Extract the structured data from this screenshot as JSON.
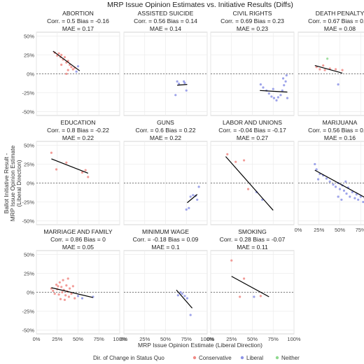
{
  "chart_data": {
    "type": "scatter",
    "title": "MRP Issue Opinion Estimates vs. Initiative Results (Diffs)",
    "xlabel": "MRP Issue Opinion Estimate (Liberal Direction)",
    "ylabel": "Ballot Initiative Result -\nMRP Issue Opinion Estimate\n(Liberal Direction)",
    "xlim": [
      0,
      1
    ],
    "ylim": [
      -0.55,
      0.55
    ],
    "x_ticks": [
      0,
      0.25,
      0.5,
      0.75,
      1
    ],
    "x_tick_labels": [
      "0%",
      "25%",
      "50%",
      "75%",
      "100%"
    ],
    "y_ticks": [
      -0.5,
      -0.25,
      0,
      0.25,
      0.5
    ],
    "y_tick_labels": [
      "-50%",
      "-25%",
      "0%",
      "25%",
      "50%"
    ],
    "grid": true,
    "reference_line_y": 0,
    "legend": {
      "title": "Dir. of Change in Status Quo",
      "placement": "bottom",
      "entries": [
        {
          "label": "Conservative",
          "color": "#f08b86"
        },
        {
          "label": "Liberal",
          "color": "#8d94e6"
        },
        {
          "label": "Neither",
          "color": "#8fd98f"
        }
      ]
    },
    "colors": {
      "conservative": "#f08b86",
      "liberal": "#8d94e6",
      "neither": "#8fd98f",
      "panel_border": "#cccccc",
      "grid": "#ebebeb",
      "fit_line": "#000000"
    },
    "panels": [
      {
        "title": "ABORTION",
        "stats": "Corr. = 0.5 Bias = -0.16",
        "mae": "MAE = 0.17",
        "fit": [
          [
            0.2,
            0.3
          ],
          [
            0.52,
            0.04
          ]
        ],
        "points": [
          {
            "x": 0.22,
            "y": 0.28,
            "dir": "conservative"
          },
          {
            "x": 0.25,
            "y": 0.24,
            "dir": "conservative"
          },
          {
            "x": 0.27,
            "y": 0.27,
            "dir": "conservative"
          },
          {
            "x": 0.29,
            "y": 0.22,
            "dir": "conservative"
          },
          {
            "x": 0.3,
            "y": 0.25,
            "dir": "conservative"
          },
          {
            "x": 0.32,
            "y": 0.19,
            "dir": "conservative"
          },
          {
            "x": 0.34,
            "y": 0.22,
            "dir": "conservative"
          },
          {
            "x": 0.36,
            "y": 0.15,
            "dir": "conservative"
          },
          {
            "x": 0.38,
            "y": 0.17,
            "dir": "conservative"
          },
          {
            "x": 0.4,
            "y": 0.12,
            "dir": "conservative"
          },
          {
            "x": 0.42,
            "y": 0.09,
            "dir": "conservative"
          },
          {
            "x": 0.44,
            "y": 0.06,
            "dir": "conservative"
          },
          {
            "x": 0.46,
            "y": 0.08,
            "dir": "conservative"
          },
          {
            "x": 0.3,
            "y": 0.12,
            "dir": "conservative"
          },
          {
            "x": 0.38,
            "y": 0.05,
            "dir": "conservative"
          },
          {
            "x": 0.36,
            "y": 0.0,
            "dir": "conservative"
          },
          {
            "x": 0.5,
            "y": 0.1,
            "dir": "liberal"
          },
          {
            "x": 0.48,
            "y": 0.03,
            "dir": "liberal"
          }
        ]
      },
      {
        "title": "ASSISTED SUICIDE",
        "stats": "Corr. = 0.56 Bias = 0.14",
        "mae": "MAE = 0.14",
        "fit": [
          [
            0.64,
            -0.15
          ],
          [
            0.76,
            -0.14
          ]
        ],
        "points": [
          {
            "x": 0.64,
            "y": -0.1,
            "dir": "liberal"
          },
          {
            "x": 0.66,
            "y": -0.13,
            "dir": "liberal"
          },
          {
            "x": 0.72,
            "y": -0.1,
            "dir": "liberal"
          },
          {
            "x": 0.73,
            "y": -0.12,
            "dir": "liberal"
          },
          {
            "x": 0.75,
            "y": -0.22,
            "dir": "liberal"
          },
          {
            "x": 0.62,
            "y": -0.28,
            "dir": "liberal"
          }
        ]
      },
      {
        "title": "CIVIL RIGHTS",
        "stats": "Corr. = 0.69 Bias = 0.23",
        "mae": "MAE = 0.23",
        "fit": [
          [
            0.59,
            -0.22
          ],
          [
            0.92,
            -0.24
          ]
        ],
        "points": [
          {
            "x": 0.6,
            "y": -0.14,
            "dir": "liberal"
          },
          {
            "x": 0.63,
            "y": -0.18,
            "dir": "liberal"
          },
          {
            "x": 0.67,
            "y": -0.22,
            "dir": "liberal"
          },
          {
            "x": 0.7,
            "y": -0.26,
            "dir": "liberal"
          },
          {
            "x": 0.73,
            "y": -0.3,
            "dir": "liberal"
          },
          {
            "x": 0.76,
            "y": -0.32,
            "dir": "liberal"
          },
          {
            "x": 0.79,
            "y": -0.35,
            "dir": "liberal"
          },
          {
            "x": 0.81,
            "y": -0.31,
            "dir": "liberal"
          },
          {
            "x": 0.84,
            "y": -0.28,
            "dir": "liberal"
          },
          {
            "x": 0.86,
            "y": -0.22,
            "dir": "liberal"
          },
          {
            "x": 0.88,
            "y": -0.15,
            "dir": "liberal"
          },
          {
            "x": 0.9,
            "y": -0.1,
            "dir": "liberal"
          },
          {
            "x": 0.87,
            "y": -0.06,
            "dir": "liberal"
          },
          {
            "x": 0.91,
            "y": -0.02,
            "dir": "liberal"
          },
          {
            "x": 0.92,
            "y": -0.32,
            "dir": "liberal"
          },
          {
            "x": 0.75,
            "y": -0.2,
            "dir": "liberal"
          }
        ]
      },
      {
        "title": "DEATH PENALTY",
        "stats": "Corr. = 0.67 Bias = 0.05",
        "mae": "MAE = 0.08",
        "fit": [
          [
            0.2,
            0.11
          ],
          [
            0.53,
            0.01
          ]
        ],
        "points": [
          {
            "x": 0.22,
            "y": 0.09,
            "dir": "conservative"
          },
          {
            "x": 0.26,
            "y": 0.06,
            "dir": "conservative"
          },
          {
            "x": 0.3,
            "y": 0.11,
            "dir": "conservative"
          },
          {
            "x": 0.32,
            "y": 0.05,
            "dir": "conservative"
          },
          {
            "x": 0.35,
            "y": 0.2,
            "dir": "neither"
          },
          {
            "x": 0.38,
            "y": 0.07,
            "dir": "conservative"
          },
          {
            "x": 0.45,
            "y": 0.06,
            "dir": "conservative"
          },
          {
            "x": 0.48,
            "y": -0.14,
            "dir": "liberal"
          },
          {
            "x": 0.53,
            "y": 0.05,
            "dir": "conservative"
          }
        ]
      },
      {
        "title": "EDUCATION",
        "stats": "Corr. = 0.8 Bias = -0.22",
        "mae": "MAE = 0.22",
        "fit": [
          [
            0.18,
            0.32
          ],
          [
            0.62,
            0.13
          ]
        ],
        "points": [
          {
            "x": 0.18,
            "y": 0.4,
            "dir": "conservative"
          },
          {
            "x": 0.24,
            "y": 0.18,
            "dir": "conservative"
          },
          {
            "x": 0.36,
            "y": 0.27,
            "dir": "conservative"
          },
          {
            "x": 0.55,
            "y": 0.14,
            "dir": "conservative"
          },
          {
            "x": 0.59,
            "y": 0.17,
            "dir": "conservative"
          },
          {
            "x": 0.62,
            "y": 0.08,
            "dir": "conservative"
          }
        ]
      },
      {
        "title": "GUNS",
        "stats": "Corr. = 0.6 Bias = 0.22",
        "mae": "MAE = 0.22",
        "fit": [
          [
            0.76,
            -0.26
          ],
          [
            0.88,
            -0.15
          ]
        ],
        "points": [
          {
            "x": 0.75,
            "y": -0.35,
            "dir": "liberal"
          },
          {
            "x": 0.78,
            "y": -0.33,
            "dir": "liberal"
          },
          {
            "x": 0.8,
            "y": -0.18,
            "dir": "liberal"
          },
          {
            "x": 0.83,
            "y": -0.16,
            "dir": "liberal"
          },
          {
            "x": 0.86,
            "y": -0.17,
            "dir": "liberal"
          },
          {
            "x": 0.88,
            "y": -0.22,
            "dir": "liberal"
          },
          {
            "x": 0.9,
            "y": -0.05,
            "dir": "liberal"
          }
        ]
      },
      {
        "title": "LABOR AND UNIONS",
        "stats": "Corr. = -0.04 Bias = -0.17",
        "mae": "MAE = 0.27",
        "fit": [
          [
            0.18,
            0.35
          ],
          [
            0.75,
            -0.36
          ]
        ],
        "points": [
          {
            "x": 0.2,
            "y": 0.38,
            "dir": "conservative"
          },
          {
            "x": 0.3,
            "y": 0.28,
            "dir": "conservative"
          },
          {
            "x": 0.4,
            "y": 0.3,
            "dir": "conservative"
          },
          {
            "x": 0.45,
            "y": -0.08,
            "dir": "conservative"
          },
          {
            "x": 0.55,
            "y": -0.12,
            "dir": "liberal"
          },
          {
            "x": 0.62,
            "y": -0.22,
            "dir": "liberal"
          }
        ]
      },
      {
        "title": "MARIJUANA",
        "stats": "Corr. = 0.56 Bias = 0.16",
        "mae": "MAE = 0.16",
        "fit": [
          [
            0.2,
            0.17
          ],
          [
            0.95,
            -0.28
          ]
        ],
        "points": [
          {
            "x": 0.2,
            "y": 0.25,
            "dir": "liberal"
          },
          {
            "x": 0.22,
            "y": 0.18,
            "dir": "liberal"
          },
          {
            "x": 0.26,
            "y": 0.12,
            "dir": "liberal"
          },
          {
            "x": 0.3,
            "y": 0.1,
            "dir": "liberal"
          },
          {
            "x": 0.34,
            "y": 0.06,
            "dir": "liberal"
          },
          {
            "x": 0.38,
            "y": 0.02,
            "dir": "liberal"
          },
          {
            "x": 0.42,
            "y": -0.02,
            "dir": "liberal"
          },
          {
            "x": 0.45,
            "y": -0.05,
            "dir": "liberal"
          },
          {
            "x": 0.48,
            "y": 0.0,
            "dir": "liberal"
          },
          {
            "x": 0.5,
            "y": -0.08,
            "dir": "liberal"
          },
          {
            "x": 0.53,
            "y": -0.03,
            "dir": "liberal"
          },
          {
            "x": 0.55,
            "y": -0.1,
            "dir": "liberal"
          },
          {
            "x": 0.58,
            "y": -0.14,
            "dir": "liberal"
          },
          {
            "x": 0.6,
            "y": -0.06,
            "dir": "liberal"
          },
          {
            "x": 0.62,
            "y": -0.18,
            "dir": "liberal"
          },
          {
            "x": 0.65,
            "y": -0.12,
            "dir": "liberal"
          },
          {
            "x": 0.68,
            "y": -0.2,
            "dir": "liberal"
          },
          {
            "x": 0.7,
            "y": -0.15,
            "dir": "liberal"
          },
          {
            "x": 0.72,
            "y": -0.22,
            "dir": "liberal"
          },
          {
            "x": 0.75,
            "y": -0.18,
            "dir": "liberal"
          },
          {
            "x": 0.78,
            "y": -0.25,
            "dir": "liberal"
          },
          {
            "x": 0.8,
            "y": -0.2,
            "dir": "liberal"
          },
          {
            "x": 0.52,
            "y": -0.22,
            "dir": "liberal"
          },
          {
            "x": 0.48,
            "y": -0.18,
            "dir": "liberal"
          },
          {
            "x": 0.57,
            "y": 0.02,
            "dir": "liberal"
          },
          {
            "x": 0.82,
            "y": -0.28,
            "dir": "liberal"
          },
          {
            "x": 0.24,
            "y": 0.05,
            "dir": "liberal"
          }
        ]
      },
      {
        "title": "MARRIAGE AND FAMILY",
        "stats": "Corr. = 0.86 Bias = 0",
        "mae": "MAE = 0.05",
        "fit": [
          [
            0.18,
            0.06
          ],
          [
            0.68,
            -0.07
          ]
        ],
        "points": [
          {
            "x": 0.18,
            "y": 0.05,
            "dir": "conservative"
          },
          {
            "x": 0.2,
            "y": 0.02,
            "dir": "conservative"
          },
          {
            "x": 0.22,
            "y": -0.02,
            "dir": "conservative"
          },
          {
            "x": 0.24,
            "y": 0.1,
            "dir": "conservative"
          },
          {
            "x": 0.25,
            "y": 0.04,
            "dir": "conservative"
          },
          {
            "x": 0.27,
            "y": -0.03,
            "dir": "conservative"
          },
          {
            "x": 0.28,
            "y": 0.13,
            "dir": "conservative"
          },
          {
            "x": 0.3,
            "y": 0.07,
            "dir": "conservative"
          },
          {
            "x": 0.31,
            "y": 0.0,
            "dir": "conservative"
          },
          {
            "x": 0.32,
            "y": 0.16,
            "dir": "conservative"
          },
          {
            "x": 0.33,
            "y": 0.03,
            "dir": "conservative"
          },
          {
            "x": 0.35,
            "y": -0.04,
            "dir": "conservative"
          },
          {
            "x": 0.36,
            "y": 0.09,
            "dir": "conservative"
          },
          {
            "x": 0.37,
            "y": 0.01,
            "dir": "conservative"
          },
          {
            "x": 0.38,
            "y": 0.18,
            "dir": "conservative"
          },
          {
            "x": 0.39,
            "y": -0.06,
            "dir": "conservative"
          },
          {
            "x": 0.4,
            "y": 0.05,
            "dir": "conservative"
          },
          {
            "x": 0.42,
            "y": -0.02,
            "dir": "conservative"
          },
          {
            "x": 0.44,
            "y": 0.08,
            "dir": "conservative"
          },
          {
            "x": 0.46,
            "y": -0.08,
            "dir": "conservative"
          },
          {
            "x": 0.29,
            "y": -0.09,
            "dir": "conservative"
          },
          {
            "x": 0.26,
            "y": 0.08,
            "dir": "conservative"
          },
          {
            "x": 0.34,
            "y": -0.1,
            "dir": "conservative"
          },
          {
            "x": 0.5,
            "y": -0.05,
            "dir": "liberal"
          },
          {
            "x": 0.55,
            "y": -0.08,
            "dir": "liberal"
          },
          {
            "x": 0.68,
            "y": -0.06,
            "dir": "liberal"
          }
        ]
      },
      {
        "title": "MINIMUM WAGE",
        "stats": "Corr. = -0.18 Bias = 0.09",
        "mae": "MAE = 0.1",
        "fit": [
          [
            0.63,
            0.03
          ],
          [
            0.82,
            -0.21
          ]
        ],
        "points": [
          {
            "x": 0.65,
            "y": -0.04,
            "dir": "liberal"
          },
          {
            "x": 0.68,
            "y": 0.0,
            "dir": "liberal"
          },
          {
            "x": 0.7,
            "y": -0.02,
            "dir": "liberal"
          },
          {
            "x": 0.73,
            "y": -0.05,
            "dir": "liberal"
          },
          {
            "x": 0.76,
            "y": -0.08,
            "dir": "liberal"
          },
          {
            "x": 0.8,
            "y": -0.3,
            "dir": "liberal"
          }
        ]
      },
      {
        "title": "SMOKING",
        "stats": "Corr. = 0.28 Bias = -0.07",
        "mae": "MAE = 0.11",
        "fit": [
          [
            0.25,
            0.21
          ],
          [
            0.7,
            -0.06
          ]
        ],
        "points": [
          {
            "x": 0.25,
            "y": 0.42,
            "dir": "conservative"
          },
          {
            "x": 0.4,
            "y": 0.18,
            "dir": "conservative"
          },
          {
            "x": 0.35,
            "y": -0.06,
            "dir": "conservative"
          },
          {
            "x": 0.6,
            "y": -0.05,
            "dir": "conservative"
          },
          {
            "x": 0.52,
            "y": -0.06,
            "dir": "liberal"
          }
        ]
      }
    ]
  }
}
